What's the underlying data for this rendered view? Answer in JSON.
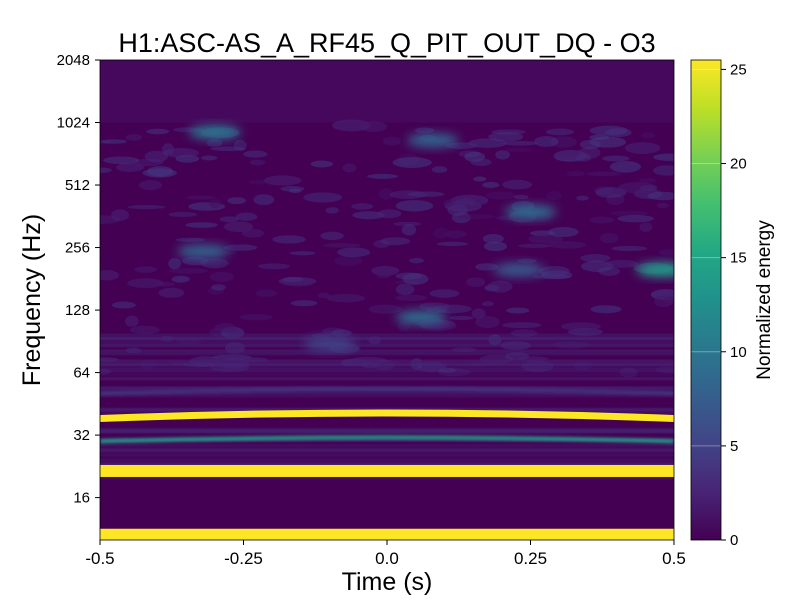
{
  "chart_data": {
    "type": "heatmap",
    "title": "H1:ASC-AS_A_RF45_Q_PIT_OUT_DQ - O3",
    "xlabel": "Time (s)",
    "ylabel": "Frequency (Hz)",
    "xlim": [
      -0.5,
      0.5
    ],
    "ylim": [
      10,
      2048
    ],
    "yscale": "log2",
    "x_ticks": [
      -0.5,
      -0.25,
      0.0,
      0.25,
      0.5
    ],
    "x_tick_labels": [
      "-0.5",
      "-0.25",
      "0.0",
      "0.25",
      "0.5"
    ],
    "y_ticks": [
      16,
      32,
      64,
      128,
      256,
      512,
      1024,
      2048
    ],
    "y_tick_labels": [
      "16",
      "32",
      "64",
      "128",
      "256",
      "512",
      "1024",
      "2048"
    ],
    "colorbar": {
      "label": "Normalized energy",
      "range": [
        0,
        25.5
      ],
      "ticks": [
        0,
        5,
        10,
        15,
        20,
        25
      ],
      "tick_labels": [
        "0",
        "5",
        "10",
        "15",
        "20",
        "25"
      ],
      "colormap": "viridis"
    },
    "bands": [
      {
        "freq": 10.6,
        "energy": 25.5,
        "shape": "flat"
      },
      {
        "freq": 21.5,
        "energy": 25.5,
        "shape": "flat"
      },
      {
        "freq": 30.5,
        "energy": 14,
        "shape": "arch"
      },
      {
        "freq": 40.0,
        "energy": 25.5,
        "shape": "arch"
      },
      {
        "freq": 52,
        "energy": 4,
        "shape": "arch"
      }
    ],
    "blobs": [
      {
        "t": 0.06,
        "freq": 118,
        "energy": 9
      },
      {
        "t": 0.48,
        "freq": 200,
        "energy": 14
      },
      {
        "t": -0.32,
        "freq": 245,
        "energy": 8
      },
      {
        "t": 0.23,
        "freq": 200,
        "energy": 7
      },
      {
        "t": 0.25,
        "freq": 380,
        "energy": 9
      },
      {
        "t": -0.3,
        "freq": 920,
        "energy": 10
      },
      {
        "t": 0.08,
        "freq": 840,
        "energy": 8
      },
      {
        "t": -0.1,
        "freq": 88,
        "energy": 5
      }
    ]
  }
}
